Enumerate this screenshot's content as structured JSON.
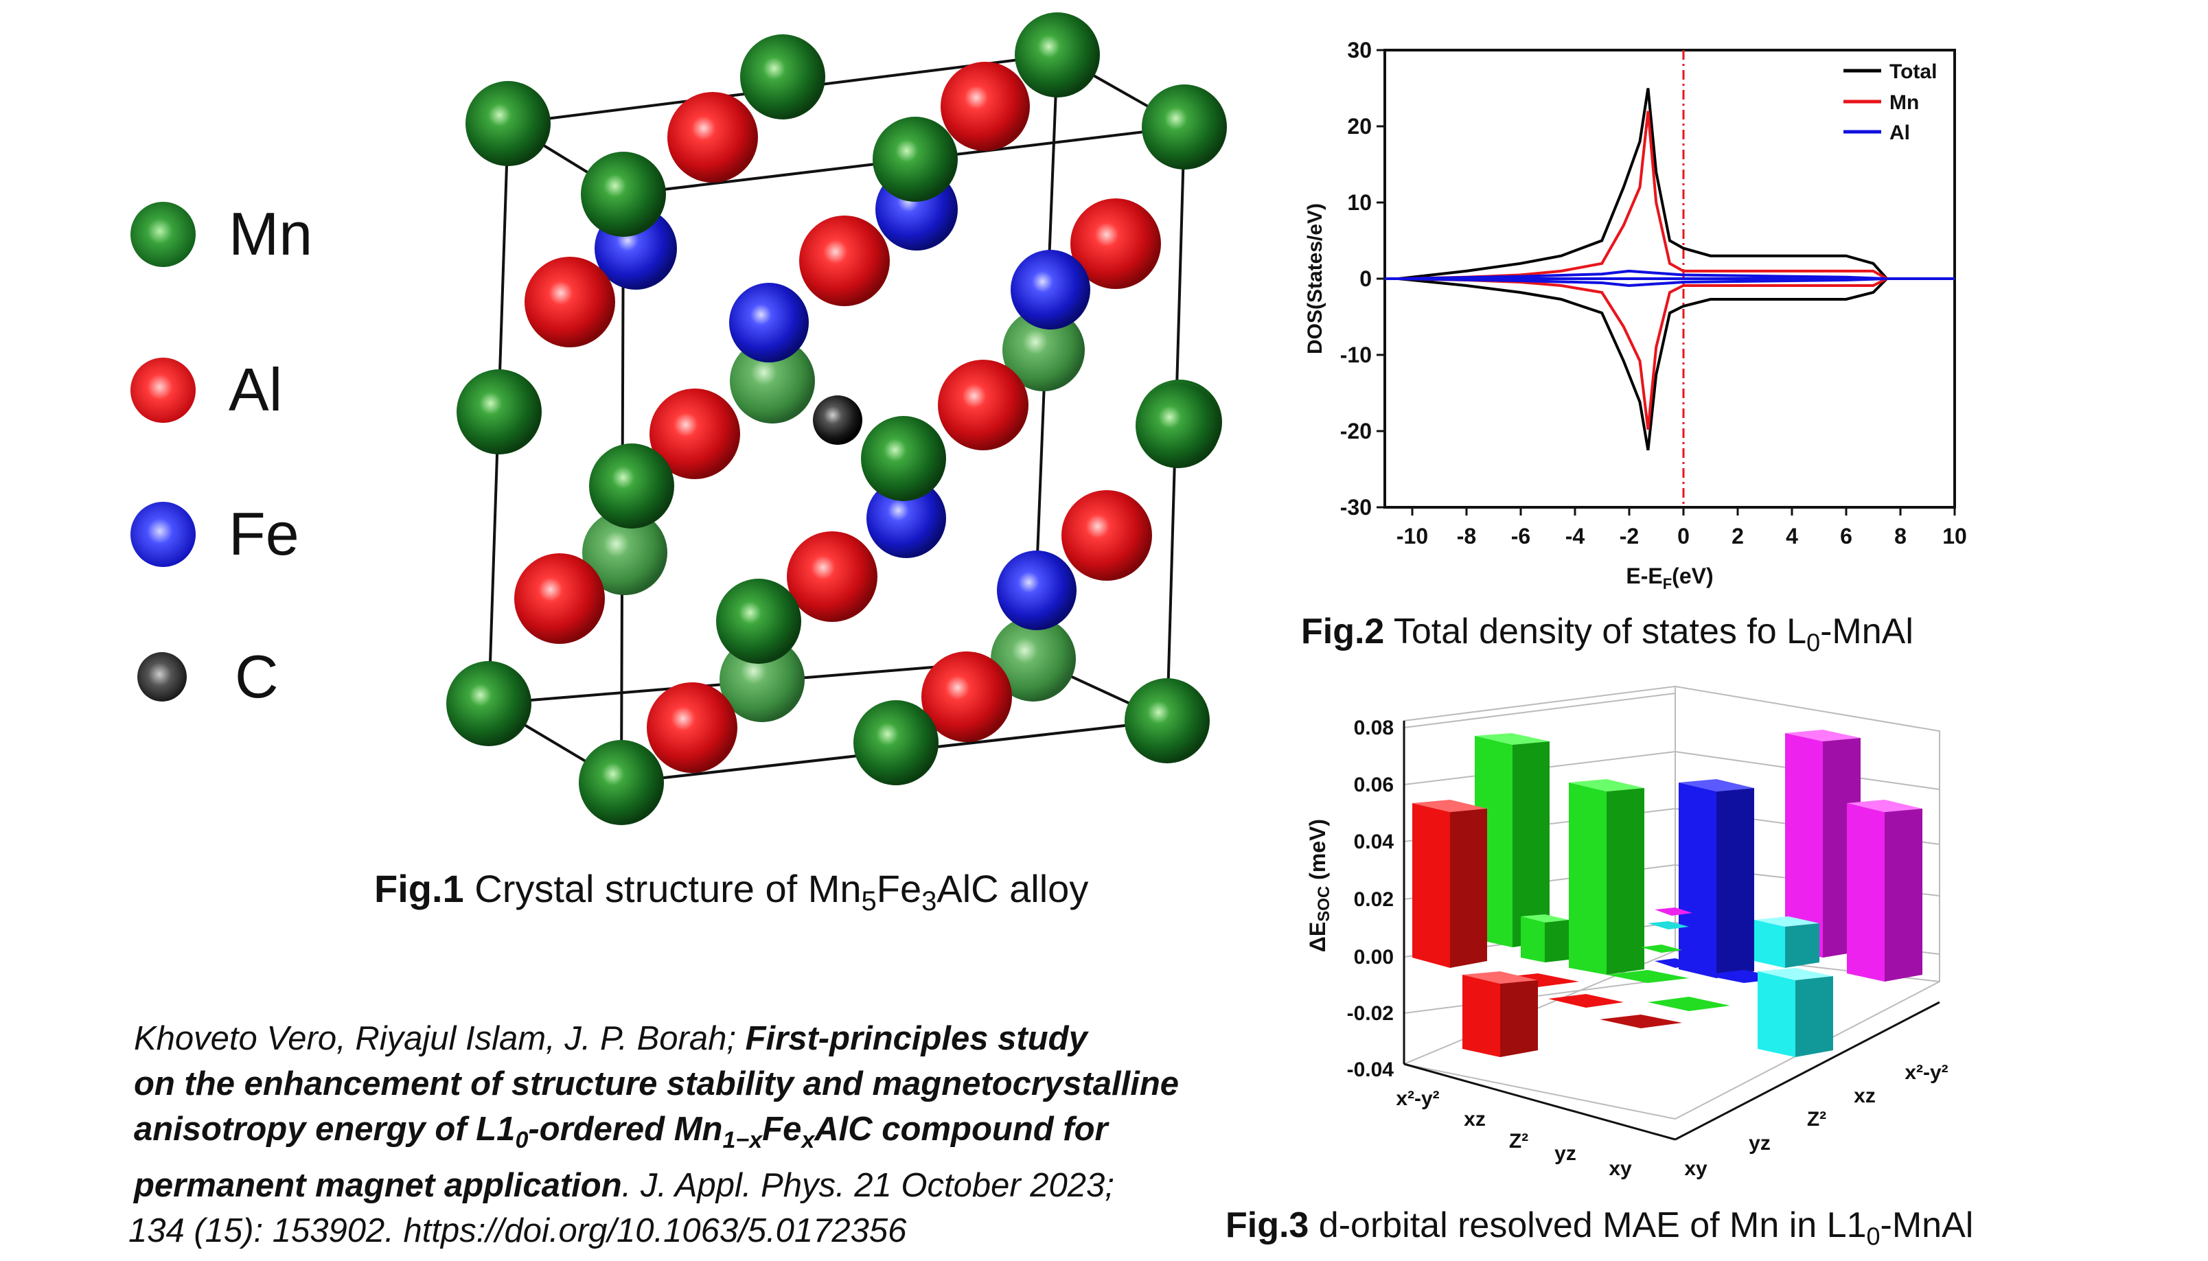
{
  "legend": [
    {
      "label": "Mn",
      "color": "#1e7a2a"
    },
    {
      "label": "Al",
      "color": "#e0151c"
    },
    {
      "label": "Fe",
      "color": "#2024d8"
    },
    {
      "label": "C",
      "color": "#202020"
    }
  ],
  "fig1": {
    "caption_bold": "Fig.1",
    "caption_text": " Crystal structure of Mn",
    "sub1": "5",
    "mid": "Fe",
    "sub2": "3",
    "end": "AlC alloy"
  },
  "fig2": {
    "caption_bold": "Fig.2",
    "caption_text": " Total density of states fo L",
    "sub": "0",
    "end": "-MnAl",
    "ylabel": "DOS(States/eV)",
    "xlabel_main": "E-E",
    "xlabel_sub": "F",
    "xlabel_unit": "(eV)",
    "xticks": [
      "-10",
      "-8",
      "-6",
      "-4",
      "-2",
      "0",
      "2",
      "4",
      "6",
      "8",
      "10"
    ],
    "yticks": [
      "30",
      "20",
      "10",
      "0",
      "-10",
      "-20",
      "-30"
    ],
    "legend": [
      {
        "name": "Total",
        "color": "#000000"
      },
      {
        "name": "Mn",
        "color": "#e8151c"
      },
      {
        "name": "Al",
        "color": "#1010e0"
      }
    ]
  },
  "fig3": {
    "caption_bold": "Fig.3",
    "caption_text": " d-orbital resolved MAE of Mn in L1",
    "sub": "0",
    "end": "-MnAl",
    "ylabel": "ΔE",
    "ylabel_sub": "SOC",
    "ylabel_unit": " (meV)",
    "yticks": [
      "0.08",
      "0.06",
      "0.04",
      "0.02",
      "0.00",
      "-0.02",
      "-0.04"
    ],
    "xaxis1": [
      "x²-y²",
      "xz",
      "Z²",
      "yz",
      "xy"
    ],
    "xaxis2": [
      "xy",
      "yz",
      "Z²",
      "xz",
      "x²-y²"
    ]
  },
  "reference": {
    "authors": "Khoveto Vero, Riyajul Islam, J. P. Borah; ",
    "title1": "First-principles study",
    "title2": "on the enhancement of  structure stability and magnetocrystalline",
    "title3a": "anisotropy energy of L1",
    "title3sub": "0",
    "title3b": "-ordered Mn",
    "title3sub2": "1−x",
    "title3c": "Fe",
    "title3sub3": "x",
    "title3d": "AlC compound for",
    "title4": "permanent magnet application",
    "journal": ". J. Appl. Phys. 21 October 2023;",
    "line5": "134 (15): 153902. https://doi.org/10.1063/5.0172356"
  },
  "chart_data": [
    {
      "type": "line",
      "title": "",
      "xlabel": "E-EF(eV)",
      "ylabel": "DOS(States/eV)",
      "xlim": [
        -11,
        10
      ],
      "ylim": [
        -30,
        30
      ],
      "series": [
        {
          "name": "Total",
          "x": [
            -10.5,
            -8,
            -6,
            -4.5,
            -3,
            -2.2,
            -1.6,
            -1.3,
            -1.0,
            -0.5,
            0,
            1,
            2,
            3,
            4,
            5,
            6,
            7,
            7.5
          ],
          "y": [
            0,
            1,
            2,
            3,
            5,
            12,
            18,
            25,
            14,
            5,
            4,
            3,
            3,
            3,
            3,
            3,
            3,
            2,
            0
          ]
        },
        {
          "name": "Mn",
          "x": [
            -10.5,
            -8,
            -6,
            -4.5,
            -3,
            -2.2,
            -1.6,
            -1.3,
            -1.0,
            -0.5,
            0,
            1,
            2,
            3,
            4,
            5,
            6,
            7,
            7.5
          ],
          "y": [
            0,
            0.2,
            0.5,
            1,
            2,
            7,
            12,
            22,
            10,
            2,
            1,
            1,
            1,
            1,
            1,
            1,
            1,
            1,
            0
          ]
        },
        {
          "name": "Al",
          "x": [
            -10.5,
            -6,
            -3,
            -2,
            0,
            2,
            4,
            6,
            7.5
          ],
          "y": [
            0,
            0.3,
            0.6,
            1,
            0.5,
            0.4,
            0.3,
            0.2,
            0
          ]
        }
      ]
    },
    {
      "type": "bar",
      "title": "",
      "ylabel": "ΔESOC (meV)",
      "ylim": [
        -0.04,
        0.08
      ],
      "note": "3D bar chart of d-orbital pair contributions",
      "series": [
        {
          "name": "x²-y²",
          "values": [
            0.055,
            -0.015,
            -0.003
          ]
        },
        {
          "name": "xz",
          "values": [
            0.077,
            0.01,
            0.061,
            0.002
          ]
        },
        {
          "name": "yz",
          "values": [
            0.061,
            -0.005,
            0.002
          ]
        },
        {
          "name": "Z²",
          "values": [
            0.003,
            -0.002,
            0.002
          ]
        },
        {
          "name": "xy",
          "values": [
            0.061,
            0.009,
            -0.014,
            0.078,
            0.055
          ]
        }
      ]
    }
  ]
}
